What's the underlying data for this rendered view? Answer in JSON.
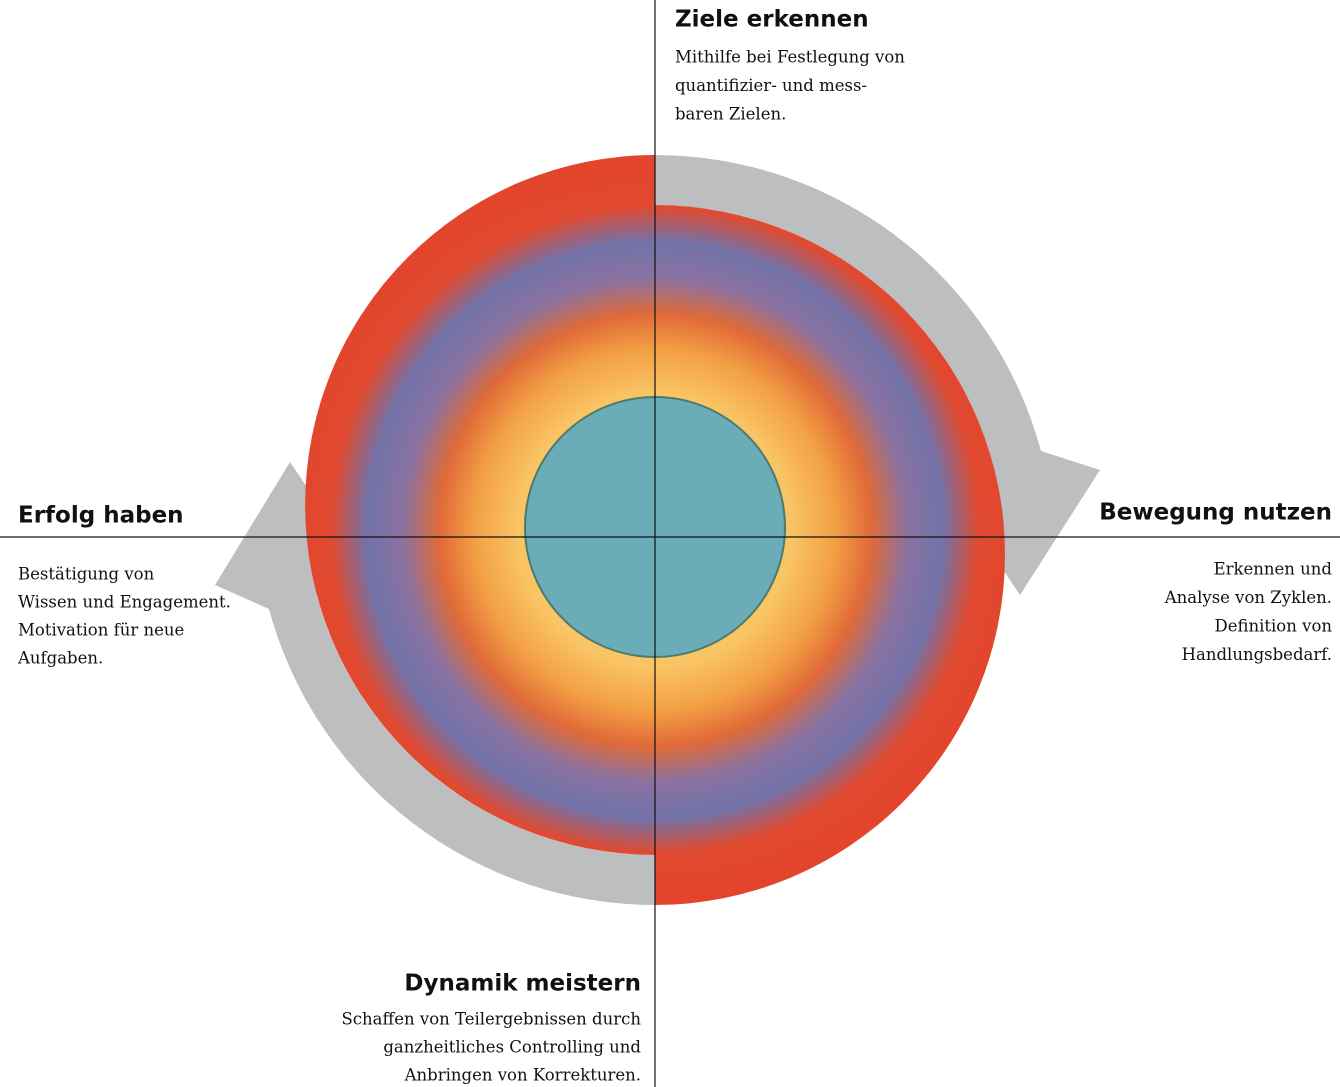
{
  "sections": [
    {
      "title": "Ziele erkennen",
      "lines": [
        "Mithilfe bei Festlegung von",
        "quantifizier- und mess-",
        "baren Zielen."
      ]
    },
    {
      "title": "Bewegung nutzen",
      "lines": [
        "Erkennen und",
        "Analyse von Zyklen.",
        "Definition von",
        "Handlungsbedarf."
      ]
    },
    {
      "title": "Dynamik meistern",
      "lines": [
        "Schaffen von Teilergebnissen durch",
        "ganzheitliches Controlling und",
        "Anbringen von Korrekturen."
      ]
    },
    {
      "title": "Erfolg haben",
      "lines": [
        "Bestätigung von",
        "Wissen und Engagement.",
        "Motivation für neue",
        "Aufgaben."
      ]
    }
  ]
}
